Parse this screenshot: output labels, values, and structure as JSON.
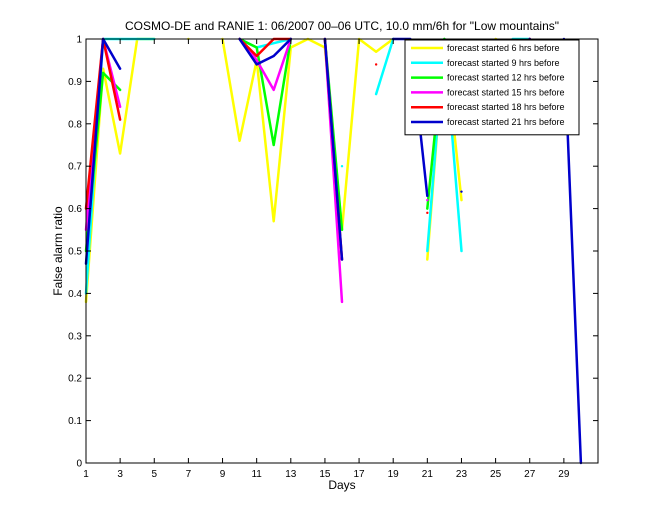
{
  "chart_data": {
    "type": "line",
    "title": "COSMO-DE and RANIE 1: 06/2007 00–06 UTC, 10.0 mm/6h for \"Low mountains\"",
    "xlabel": "Days",
    "ylabel": "False alarm ratio",
    "xlim": [
      1,
      31
    ],
    "ylim": [
      0,
      1
    ],
    "xticks": [
      1,
      3,
      5,
      7,
      9,
      11,
      13,
      15,
      17,
      19,
      21,
      23,
      25,
      27,
      29
    ],
    "yticks": [
      0,
      0.1,
      0.2,
      0.3,
      0.4,
      0.5,
      0.6,
      0.7,
      0.8,
      0.9,
      1
    ],
    "legend_position": "top-right",
    "grid": false,
    "series": [
      {
        "name": "forecast started 6 hrs before",
        "color": "#ffff00",
        "x": [
          1,
          2,
          3,
          4,
          5,
          6,
          7,
          8,
          9,
          10,
          11,
          12,
          13,
          14,
          15,
          16,
          17,
          18,
          19,
          20,
          21,
          22,
          23,
          24,
          25,
          26,
          27,
          28,
          29,
          30
        ],
        "y": [
          0.38,
          0.93,
          0.73,
          1,
          1,
          null,
          1,
          null,
          1,
          0.76,
          0.95,
          0.57,
          0.98,
          1,
          0.98,
          0.55,
          1,
          0.97,
          1,
          null,
          0.48,
          1,
          0.62,
          null,
          1,
          0.98,
          1,
          null,
          null,
          null
        ]
      },
      {
        "name": "forecast started 9 hrs before",
        "color": "#00ffff",
        "x": [
          1,
          2,
          3,
          4,
          5,
          6,
          7,
          8,
          9,
          10,
          11,
          12,
          13,
          14,
          15,
          16,
          17,
          18,
          19,
          20,
          21,
          22,
          23,
          24,
          25,
          26,
          27,
          28,
          29,
          30
        ],
        "y": [
          0.4,
          1,
          1,
          1,
          1,
          null,
          null,
          null,
          null,
          1,
          0.98,
          0.99,
          1,
          null,
          null,
          0.7,
          null,
          0.87,
          1,
          null,
          0.5,
          1,
          0.5,
          null,
          null,
          1,
          1,
          null,
          null,
          null
        ]
      },
      {
        "name": "forecast started 12 hrs before",
        "color": "#00ff00",
        "x": [
          1,
          2,
          3,
          4,
          5,
          6,
          7,
          8,
          9,
          10,
          11,
          12,
          13,
          14,
          15,
          16,
          17,
          18,
          19,
          20,
          21,
          22,
          23,
          24,
          25,
          26,
          27,
          28,
          29,
          30
        ],
        "y": [
          0.5,
          0.92,
          0.88,
          null,
          null,
          null,
          null,
          null,
          null,
          1,
          0.98,
          0.75,
          1,
          null,
          1,
          0.55,
          null,
          null,
          null,
          null,
          0.6,
          1,
          null,
          null,
          null,
          null,
          null,
          null,
          null,
          null
        ]
      },
      {
        "name": "forecast started 15 hrs before",
        "color": "#ff00ff",
        "x": [
          1,
          2,
          3,
          4,
          5,
          6,
          7,
          8,
          9,
          10,
          11,
          12,
          13,
          14,
          15,
          16,
          17,
          18,
          19,
          20,
          21,
          22,
          23,
          24,
          25,
          26,
          27,
          28,
          29,
          30
        ],
        "y": [
          0.55,
          1,
          0.84,
          null,
          null,
          null,
          null,
          null,
          null,
          1,
          0.95,
          0.88,
          1,
          null,
          1,
          0.38,
          null,
          null,
          null,
          null,
          0.62,
          null,
          null,
          null,
          null,
          0.97,
          1,
          null,
          null,
          null
        ]
      },
      {
        "name": "forecast started 18 hrs before",
        "color": "#ff0000",
        "x": [
          1,
          2,
          3,
          4,
          5,
          6,
          7,
          8,
          9,
          10,
          11,
          12,
          13,
          14,
          15,
          16,
          17,
          18,
          19,
          20,
          21,
          22,
          23,
          24,
          25,
          26,
          27,
          28,
          29,
          30
        ],
        "y": [
          0.6,
          1,
          0.81,
          null,
          null,
          null,
          null,
          null,
          null,
          1,
          0.96,
          1,
          1,
          null,
          1,
          0.48,
          null,
          0.94,
          null,
          null,
          0.59,
          null,
          null,
          null,
          null,
          0.85,
          1,
          null,
          null,
          null
        ]
      },
      {
        "name": "forecast started 21 hrs before",
        "color": "#0000cc",
        "x": [
          1,
          2,
          3,
          4,
          5,
          6,
          7,
          8,
          9,
          10,
          11,
          12,
          13,
          14,
          15,
          16,
          17,
          18,
          19,
          20,
          21,
          22,
          23,
          24,
          25,
          26,
          27,
          28,
          29,
          30
        ],
        "y": [
          0.47,
          1,
          0.93,
          null,
          null,
          null,
          null,
          null,
          null,
          1,
          0.94,
          0.96,
          1,
          null,
          1,
          0.48,
          null,
          null,
          1,
          1,
          0.63,
          null,
          0.64,
          null,
          null,
          0.9,
          1,
          null,
          1,
          0
        ]
      }
    ]
  }
}
